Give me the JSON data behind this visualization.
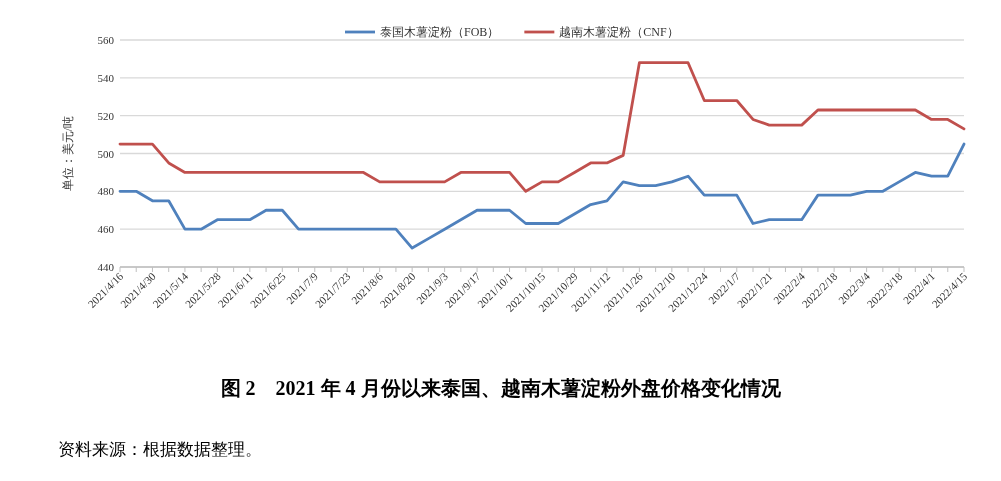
{
  "chart_data": {
    "type": "line",
    "title": "图 2　2021 年 4 月份以来泰国、越南木薯淀粉外盘价格变化情况",
    "ylabel": "单位：美元/吨",
    "annotations": [
      "资料来源：根据数据整理。"
    ],
    "categories": [
      "2021/4/16",
      null,
      "2021/4/30",
      null,
      "2021/5/14",
      null,
      "2021/5/28",
      null,
      "2021/6/11",
      null,
      "2021/6/25",
      null,
      "2021/7/9",
      null,
      "2021/7/23",
      null,
      "2021/8/6",
      null,
      "2021/8/20",
      null,
      "2021/9/3",
      null,
      "2021/9/17",
      null,
      "2021/10/1",
      null,
      "2021/10/15",
      null,
      "2021/10/29",
      null,
      "2021/11/12",
      null,
      "2021/11/26",
      null,
      "2021/12/10",
      null,
      "2021/12/24",
      null,
      "2022/1/7",
      null,
      "2022/1/21",
      null,
      "2022/2/4",
      null,
      "2022/2/18",
      null,
      "2022/3/4",
      null,
      "2022/3/18",
      null,
      "2022/4/1",
      null,
      "2022/4/15"
    ],
    "series": [
      {
        "name": "泰国木薯淀粉（FOB）",
        "color": "#4f81bd",
        "values": [
          480,
          480,
          475,
          475,
          460,
          460,
          465,
          465,
          465,
          470,
          470,
          460,
          460,
          460,
          460,
          460,
          460,
          460,
          450,
          455,
          460,
          465,
          470,
          470,
          470,
          463,
          463,
          463,
          468,
          473,
          475,
          485,
          483,
          483,
          485,
          488,
          478,
          478,
          478,
          463,
          465,
          465,
          465,
          478,
          478,
          478,
          480,
          480,
          485,
          490,
          488,
          488,
          505
        ]
      },
      {
        "name": "越南木薯淀粉（CNF）",
        "color": "#c0504d",
        "values": [
          505,
          505,
          505,
          495,
          490,
          490,
          490,
          490,
          490,
          490,
          490,
          490,
          490,
          490,
          490,
          490,
          485,
          485,
          485,
          485,
          485,
          490,
          490,
          490,
          490,
          480,
          485,
          485,
          490,
          495,
          495,
          499,
          548,
          548,
          548,
          548,
          528,
          528,
          528,
          518,
          515,
          515,
          515,
          523,
          523,
          523,
          523,
          523,
          523,
          523,
          518,
          518,
          513
        ]
      }
    ],
    "ylim": [
      440,
      560
    ],
    "yticks": [
      440,
      460,
      480,
      500,
      520,
      540,
      560
    ],
    "grid": "y",
    "legend": "top"
  }
}
